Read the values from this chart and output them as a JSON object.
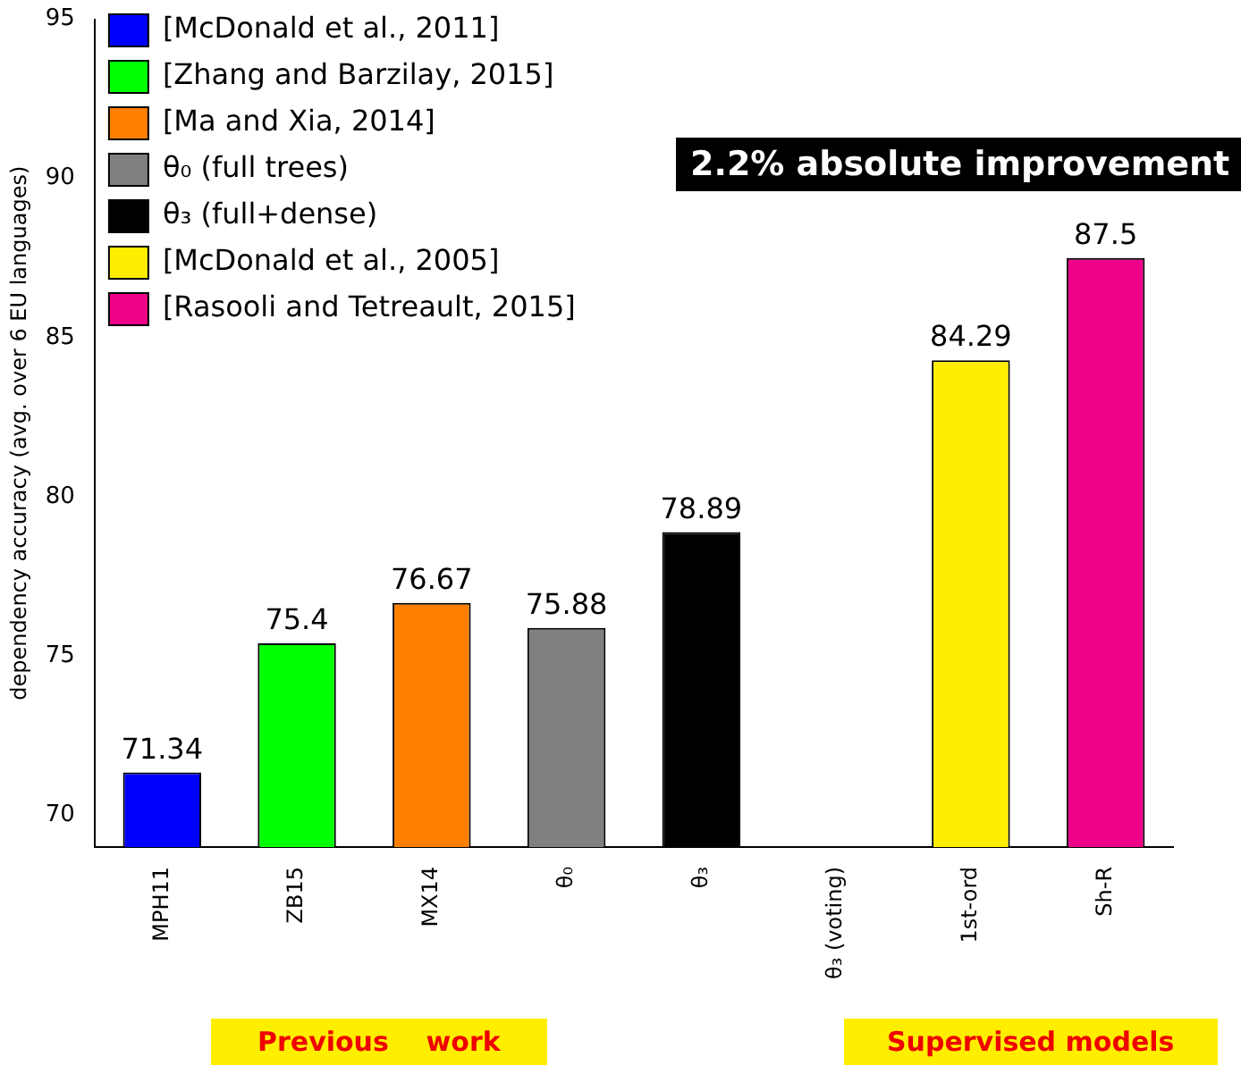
{
  "chart_data": {
    "type": "bar",
    "ylabel": "dependency accuracy (avg. over 6 EU languages)",
    "categories": [
      "MPH11",
      "ZB15",
      "MX14",
      "θ₀",
      "θ₃",
      "θ₃ (voting)",
      "1st-ord",
      "Sh-R"
    ],
    "series": [
      {
        "name": "[McDonald et al., 2011]",
        "color": "#0000ff",
        "values": [
          71.34,
          null,
          null,
          null,
          null,
          null,
          null,
          null
        ]
      },
      {
        "name": "[Zhang and Barzilay, 2015]",
        "color": "#00ff00",
        "values": [
          null,
          75.4,
          null,
          null,
          null,
          null,
          null,
          null
        ]
      },
      {
        "name": "[Ma and Xia, 2014]",
        "color": "#ff7f00",
        "values": [
          null,
          null,
          76.67,
          null,
          null,
          null,
          null,
          null
        ]
      },
      {
        "name": "θ₀ (full trees)",
        "color": "#808080",
        "values": [
          null,
          null,
          null,
          75.88,
          null,
          null,
          null,
          null
        ]
      },
      {
        "name": "θ₃ (full+dense)",
        "color": "#000000",
        "values": [
          null,
          null,
          null,
          null,
          78.89,
          null,
          null,
          null
        ]
      },
      {
        "name": "[McDonald et al., 2005]",
        "color": "#ffee00",
        "values": [
          null,
          null,
          null,
          null,
          null,
          null,
          84.29,
          null
        ]
      },
      {
        "name": "[Rasooli and Tetreault, 2015]",
        "color": "#ee0088",
        "values": [
          null,
          null,
          null,
          null,
          null,
          null,
          null,
          87.5
        ]
      }
    ],
    "ylim": [
      69,
      95
    ],
    "yticks": [
      70,
      75,
      80,
      85,
      90,
      95
    ],
    "grid": false,
    "legend": "top left",
    "data_labels": true,
    "annotations": [
      "2.2% absolute improvement",
      "Previous    work",
      "Supervised models"
    ]
  }
}
